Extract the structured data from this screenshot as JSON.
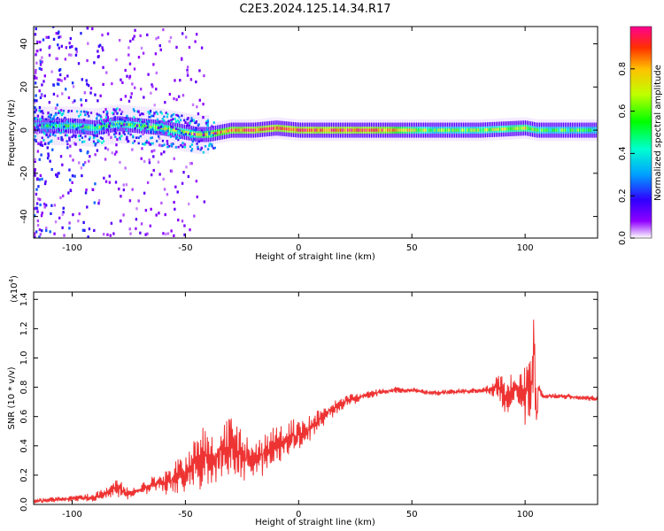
{
  "title": "C2E3.2024.125.14.34.R17",
  "chart_data": [
    {
      "type": "heatmap",
      "xlabel": "Height of straight line (km)",
      "ylabel": "Frequency (Hz)",
      "xlim": [
        -117,
        132
      ],
      "ylim": [
        -50,
        48
      ],
      "xticks": [
        "-100",
        "-50",
        "0",
        "50",
        "100"
      ],
      "yticks": [
        "-40",
        "-20",
        "0",
        "20",
        "40"
      ],
      "xtick_values": [
        -100,
        -50,
        0,
        50,
        100
      ],
      "ytick_values": [
        -40,
        -20,
        0,
        20,
        40
      ],
      "colorbar": {
        "label": "Normalized spectral amplitude",
        "range": [
          0,
          1
        ],
        "ticks": [
          "0.0",
          "0.2",
          "0.4",
          "0.6",
          "0.8"
        ],
        "tick_values": [
          0.0,
          0.2,
          0.4,
          0.6,
          0.8
        ],
        "colormap": [
          "#ffffff",
          "#9000ff",
          "#3000ff",
          "#00a0ff",
          "#00ffd0",
          "#00ff00",
          "#c0ff00",
          "#ffc000",
          "#ff3000",
          "#ff0090"
        ]
      },
      "ridge": {
        "x": [
          -117,
          -100,
          -90,
          -80,
          -70,
          -60,
          -50,
          -45,
          -40,
          -35,
          -30,
          -20,
          -10,
          0,
          10,
          20,
          30,
          40,
          45,
          60,
          80,
          100,
          105,
          132
        ],
        "frequency": [
          2,
          2,
          1,
          3,
          2,
          1,
          -1,
          -2,
          -2,
          -1,
          0,
          0,
          1,
          0,
          0,
          0,
          0,
          0,
          0,
          0,
          0,
          1,
          0,
          0
        ],
        "amplitude": [
          0.45,
          0.5,
          0.55,
          0.6,
          0.65,
          0.7,
          0.65,
          0.7,
          0.75,
          0.8,
          0.85,
          0.9,
          0.9,
          0.9,
          0.9,
          0.9,
          0.9,
          0.85,
          0.75,
          0.55,
          0.6,
          0.7,
          0.55,
          0.5
        ]
      }
    },
    {
      "type": "line",
      "xlabel": "Height of straight line (km)",
      "ylabel": "SNR (10 * v/v)",
      "yscale_label": "(x10",
      "yscale_exp": "4",
      "yscale_close": ")",
      "color": "#ee3333",
      "xlim": [
        -117,
        132
      ],
      "ylim": [
        0,
        1.45
      ],
      "xticks": [
        "-100",
        "-50",
        "0",
        "50",
        "100"
      ],
      "yticks": [
        "0.0",
        "0.2",
        "0.4",
        "0.6",
        "0.8",
        "1.0",
        "1.2",
        "1.4"
      ],
      "xtick_values": [
        -100,
        -50,
        0,
        50,
        100
      ],
      "ytick_values": [
        0.0,
        0.2,
        0.4,
        0.6,
        0.8,
        1.0,
        1.2,
        1.4
      ],
      "series": [
        {
          "x": [
            -117,
            -110,
            -100,
            -90,
            -85,
            -80,
            -75,
            -70,
            -65,
            -60,
            -55,
            -50,
            -45,
            -40,
            -35,
            -30,
            -25,
            -20,
            -15,
            -10,
            -5,
            0,
            5,
            10,
            15,
            20,
            25,
            30,
            35,
            40,
            50,
            60,
            70,
            80,
            85,
            88,
            92,
            96,
            100,
            103,
            104,
            105,
            106,
            108,
            115,
            125,
            132
          ],
          "y": [
            0.02,
            0.03,
            0.04,
            0.05,
            0.08,
            0.12,
            0.08,
            0.1,
            0.13,
            0.15,
            0.18,
            0.22,
            0.3,
            0.32,
            0.35,
            0.4,
            0.3,
            0.3,
            0.35,
            0.4,
            0.45,
            0.48,
            0.52,
            0.6,
            0.65,
            0.7,
            0.72,
            0.75,
            0.76,
            0.78,
            0.78,
            0.76,
            0.77,
            0.78,
            0.78,
            0.82,
            0.75,
            0.78,
            0.75,
            0.9,
            1.2,
            0.6,
            0.8,
            0.74,
            0.74,
            0.73,
            0.72
          ],
          "noise": [
            0.02,
            0.02,
            0.02,
            0.03,
            0.04,
            0.07,
            0.05,
            0.05,
            0.06,
            0.08,
            0.12,
            0.15,
            0.22,
            0.22,
            0.2,
            0.2,
            0.2,
            0.15,
            0.15,
            0.14,
            0.12,
            0.12,
            0.1,
            0.08,
            0.07,
            0.05,
            0.04,
            0.03,
            0.03,
            0.03,
            0.02,
            0.02,
            0.02,
            0.02,
            0.04,
            0.1,
            0.2,
            0.05,
            0.25,
            0.4,
            0.3,
            0.35,
            0.05,
            0.02,
            0.02,
            0.02,
            0.02
          ]
        }
      ]
    }
  ]
}
